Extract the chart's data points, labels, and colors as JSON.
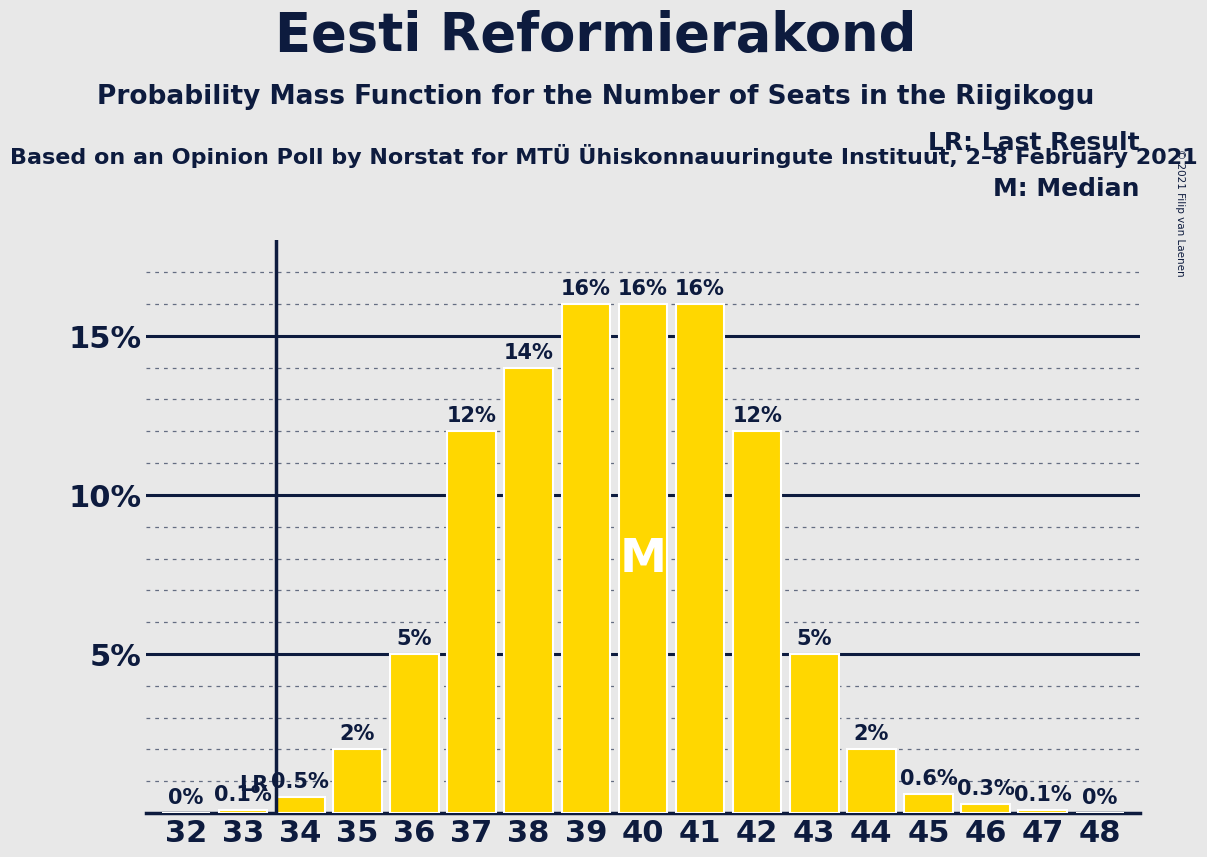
{
  "title": "Eesti Reformierakond",
  "subtitle": "Probability Mass Function for the Number of Seats in the Riigikogu",
  "source_line": "Based on an Opinion Poll by Norstat for MTÜ Ühiskonnauuringute Instituut, 2–8 February 2021",
  "copyright": "© 2021 Filip van Laenen",
  "seats": [
    32,
    33,
    34,
    35,
    36,
    37,
    38,
    39,
    40,
    41,
    42,
    43,
    44,
    45,
    46,
    47,
    48
  ],
  "probabilities": [
    0.0,
    0.1,
    0.5,
    2.0,
    5.0,
    12.0,
    14.0,
    16.0,
    16.0,
    16.0,
    12.0,
    5.0,
    2.0,
    0.6,
    0.3,
    0.1,
    0.0
  ],
  "bar_color": "#FFD700",
  "bar_edge_color": "#FFFFFF",
  "background_color": "#E8E8E8",
  "text_color": "#0d1b3e",
  "median_seat": 40,
  "last_result_seat": 34,
  "ylim_max": 18,
  "major_yticks": [
    5,
    10,
    15
  ],
  "title_fontsize": 38,
  "subtitle_fontsize": 19,
  "source_fontsize": 16,
  "tick_fontsize": 22,
  "bar_label_fontsize": 15,
  "legend_fontsize": 18,
  "median_label_fontsize": 34,
  "lr_label_fontsize": 15
}
